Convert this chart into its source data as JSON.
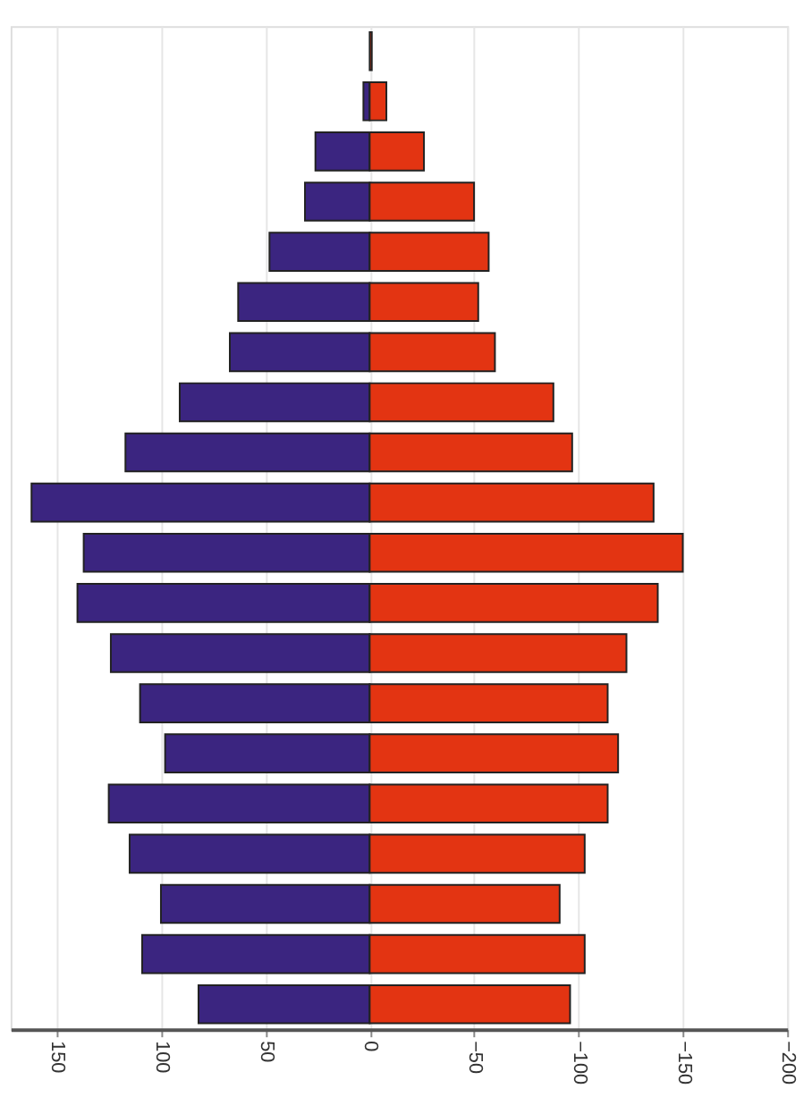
{
  "chart_data": {
    "type": "bar",
    "orientation": "horizontal",
    "stacked": true,
    "categories": [
      null,
      null,
      null,
      null,
      null,
      null,
      null,
      null,
      null,
      null,
      null,
      null,
      null,
      null,
      null,
      null,
      null,
      null,
      null,
      null
    ],
    "series": [
      {
        "color": "#3b2580",
        "values": [
          null,
          3,
          26,
          31,
          48,
          63,
          67,
          91,
          117,
          162,
          137,
          140,
          124,
          110,
          98,
          125,
          115,
          100,
          109,
          82
        ]
      },
      {
        "color": "#e33412",
        "values": [
          -1,
          -8,
          -26,
          -50,
          -57,
          -52,
          -60,
          -88,
          -97,
          -136,
          -150,
          -138,
          -123,
          -114,
          -119,
          -114,
          -103,
          -91,
          -103,
          -96
        ]
      }
    ],
    "xlim": [
      172,
      -200
    ],
    "xticks": [
      150,
      100,
      50,
      0,
      -50,
      -100,
      -150,
      -200
    ],
    "grid": "x",
    "tick_labels": "x",
    "legend": false
  }
}
